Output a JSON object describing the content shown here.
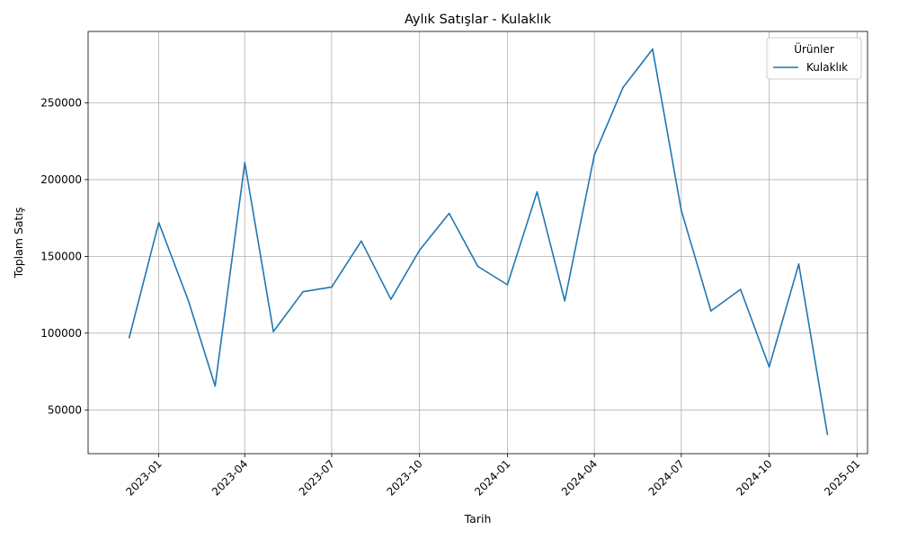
{
  "chart_data": {
    "type": "line",
    "title": "Aylık Satışlar - Kulaklık",
    "xlabel": "Tarih",
    "ylabel": "Toplam Satış",
    "x_type": "date",
    "xlim": [
      "2022-10-19",
      "2025-01-12"
    ],
    "ylim": [
      21500,
      296500
    ],
    "x_ticks": [
      "2023-01",
      "2023-04",
      "2023-07",
      "2023-10",
      "2024-01",
      "2024-04",
      "2024-07",
      "2024-10",
      "2025-01"
    ],
    "y_ticks": [
      50000,
      100000,
      150000,
      200000,
      250000
    ],
    "grid": true,
    "legend": {
      "title": "Ürünler",
      "position": "top-right"
    },
    "color": "#1f77b4",
    "x": [
      "2022-12-01",
      "2023-01-01",
      "2023-02-01",
      "2023-03-01",
      "2023-04-01",
      "2023-05-01",
      "2023-06-01",
      "2023-07-01",
      "2023-08-01",
      "2023-09-01",
      "2023-10-01",
      "2023-11-01",
      "2023-12-01",
      "2024-01-01",
      "2024-02-01",
      "2024-03-01",
      "2024-04-01",
      "2024-05-01",
      "2024-06-01",
      "2024-07-01",
      "2024-08-01",
      "2024-09-01",
      "2024-10-01",
      "2024-11-01",
      "2024-12-01"
    ],
    "series": [
      {
        "name": "Kulaklık",
        "values": [
          97000,
          172000,
          121000,
          65500,
          211000,
          101000,
          127000,
          130000,
          160000,
          122000,
          154000,
          178000,
          143500,
          131500,
          192000,
          121000,
          216000,
          260000,
          285000,
          180000,
          114500,
          128500,
          78000,
          145000,
          34000
        ]
      }
    ]
  }
}
